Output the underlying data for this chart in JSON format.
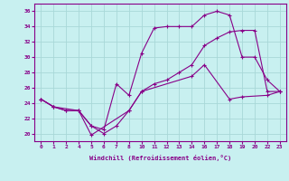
{
  "xlabel": "Windchill (Refroidissement éolien,°C)",
  "bg_color": "#c8f0f0",
  "grid_color": "#a8d8d8",
  "line_color": "#880088",
  "xlim": [
    -0.5,
    19.5
  ],
  "ylim": [
    19.0,
    37.0
  ],
  "yticks": [
    20,
    22,
    24,
    26,
    28,
    30,
    32,
    34,
    36
  ],
  "xtick_positions": [
    0,
    1,
    2,
    3,
    4,
    5,
    6,
    7,
    8,
    9,
    10,
    11,
    12,
    13,
    14,
    15,
    16,
    17,
    18,
    19
  ],
  "xtick_labels": [
    "0",
    "1",
    "2",
    "4",
    "5",
    "6",
    "7",
    "8",
    "10",
    "11",
    "12",
    "13",
    "14",
    "16",
    "17",
    "18",
    "19",
    "20",
    "22",
    "23"
  ],
  "line1_x": [
    0,
    1,
    2,
    3,
    4,
    5,
    6,
    7,
    8,
    9,
    10,
    11,
    12,
    13,
    14,
    15,
    16,
    17,
    18,
    19
  ],
  "line1_y": [
    24.5,
    23.5,
    23.0,
    23.0,
    21.0,
    20.5,
    26.5,
    25.0,
    30.5,
    33.8,
    34.0,
    34.0,
    34.0,
    35.5,
    36.0,
    35.5,
    30.0,
    30.0,
    27.0,
    25.5
  ],
  "line2_x": [
    0,
    1,
    2,
    3,
    4,
    5,
    6,
    7,
    8,
    9,
    10,
    11,
    12,
    13,
    14,
    15,
    16,
    17,
    18,
    19
  ],
  "line2_y": [
    24.5,
    23.5,
    23.0,
    23.0,
    21.0,
    20.0,
    21.0,
    23.0,
    25.5,
    26.5,
    27.0,
    28.0,
    29.0,
    31.5,
    32.5,
    33.3,
    33.5,
    33.5,
    25.5,
    25.5
  ],
  "line3_x": [
    0,
    1,
    3,
    4,
    7,
    8,
    12,
    13,
    15,
    16,
    18,
    19
  ],
  "line3_y": [
    24.5,
    23.5,
    23.0,
    19.8,
    23.0,
    25.5,
    27.5,
    29.0,
    24.5,
    24.8,
    25.0,
    25.5
  ],
  "marker": "+"
}
